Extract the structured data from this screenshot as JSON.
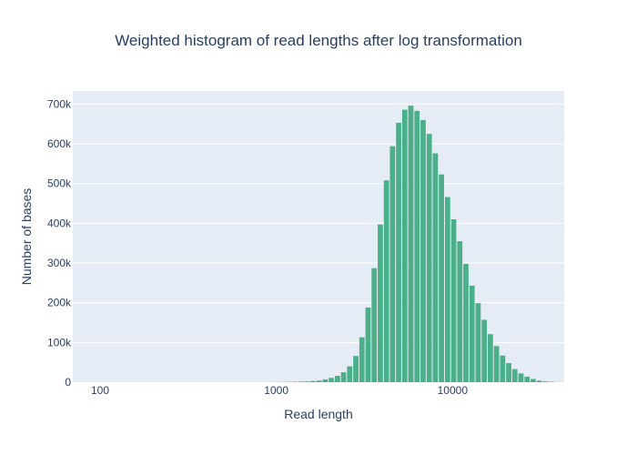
{
  "chart_data": {
    "type": "bar",
    "title": "Weighted histogram of read lengths after log transformation",
    "xlabel": "Read length",
    "ylabel": "Number of bases",
    "x_scale": "log",
    "xlim": [
      70,
      43000
    ],
    "ylim": [
      0,
      733000
    ],
    "x_ticks": [
      {
        "value": 100,
        "label": "100"
      },
      {
        "value": 1000,
        "label": "1000"
      },
      {
        "value": 10000,
        "label": "10000"
      }
    ],
    "y_ticks": [
      {
        "value": 0,
        "label": "0"
      },
      {
        "value": 100000,
        "label": "100k"
      },
      {
        "value": 200000,
        "label": "200k"
      },
      {
        "value": 300000,
        "label": "300k"
      },
      {
        "value": 400000,
        "label": "400k"
      },
      {
        "value": 500000,
        "label": "500k"
      },
      {
        "value": 600000,
        "label": "600k"
      },
      {
        "value": 700000,
        "label": "700k"
      }
    ],
    "grid": true,
    "bar_color": "#4bb08a",
    "plot_bg": "#e5ecf6",
    "bin_width_log10": 0.0348,
    "x": [
      1000,
      1083,
      1173,
      1270,
      1376,
      1491,
      1615,
      1749,
      1895,
      2053,
      2223,
      2408,
      2609,
      2826,
      3061,
      3315,
      3591,
      3890,
      4214,
      4564,
      4944,
      5355,
      5801,
      6283,
      6806,
      7372,
      7985,
      8649,
      9368,
      10148,
      10992,
      11906,
      12897,
      13969,
      15132,
      16390,
      17754,
      19231,
      20830,
      22563,
      24440,
      26473,
      28675,
      31060,
      33644,
      36443
    ],
    "values": [
      200,
      400,
      700,
      1000,
      1500,
      2000,
      3000,
      4000,
      7000,
      11000,
      16000,
      25000,
      40000,
      66000,
      113000,
      188000,
      287000,
      397000,
      508000,
      594000,
      653000,
      686000,
      696000,
      683000,
      660000,
      625000,
      576000,
      523000,
      466000,
      410000,
      355000,
      298000,
      243000,
      199000,
      157000,
      121000,
      91000,
      67000,
      48000,
      33000,
      22000,
      14000,
      8000,
      4000,
      2000,
      1000
    ]
  }
}
